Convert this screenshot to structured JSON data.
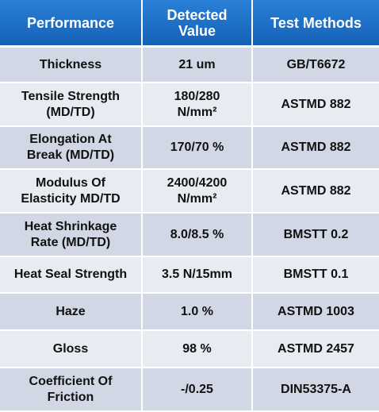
{
  "table": {
    "header": [
      [
        "Performance"
      ],
      [
        "Detected",
        "Value"
      ],
      [
        "Test Methods"
      ]
    ],
    "rows": [
      [
        [
          "Thickness"
        ],
        [
          "21 um"
        ],
        [
          "GB/T6672"
        ]
      ],
      [
        [
          "Tensile Strength",
          "(MD/TD)"
        ],
        [
          "180/280",
          "N/mm²"
        ],
        [
          "ASTMD 882"
        ]
      ],
      [
        [
          "Elongation At",
          "Break (MD/TD)"
        ],
        [
          "170/70 %"
        ],
        [
          "ASTMD 882"
        ]
      ],
      [
        [
          "Modulus Of",
          "Elasticity MD/TD"
        ],
        [
          "2400/4200",
          "N/mm²"
        ],
        [
          "ASTMD 882"
        ]
      ],
      [
        [
          "Heat Shrinkage",
          "Rate (MD/TD)"
        ],
        [
          "8.0/8.5 %"
        ],
        [
          "BMSTT 0.2"
        ]
      ],
      [
        [
          "Heat Seal Strength"
        ],
        [
          "3.5 N/15mm"
        ],
        [
          "BMSTT 0.1"
        ]
      ],
      [
        [
          "Haze"
        ],
        [
          "1.0 %"
        ],
        [
          "ASTMD 1003"
        ]
      ],
      [
        [
          "Gloss"
        ],
        [
          "98 %"
        ],
        [
          "ASTMD 2457"
        ]
      ],
      [
        [
          "Coefficient Of",
          "Friction"
        ],
        [
          "-/0.25"
        ],
        [
          "DIN53375-A"
        ]
      ]
    ]
  }
}
